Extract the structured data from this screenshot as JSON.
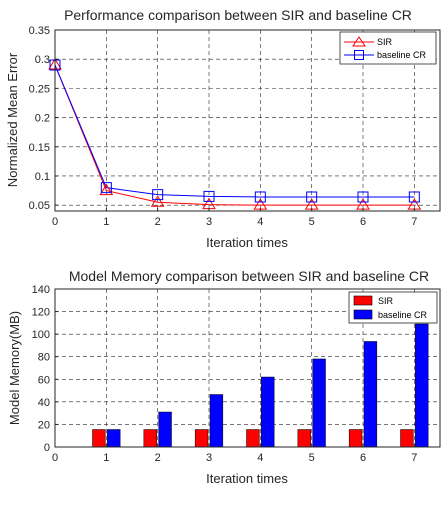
{
  "chart_data": [
    {
      "type": "line",
      "title": "Performance comparison between SIR and baseline CR",
      "xlabel": "Iteration times",
      "ylabel": "Normalized Mean Error",
      "xlim": [
        0,
        7.5
      ],
      "ylim": [
        0.04,
        0.35
      ],
      "xticks": [
        0,
        1,
        2,
        3,
        4,
        5,
        6,
        7
      ],
      "yticks": [
        0.05,
        0.1,
        0.15,
        0.2,
        0.25,
        0.3,
        0.35
      ],
      "ytick_labels": [
        "0.05",
        "0.1",
        "0.15",
        "0.2",
        "0.25",
        "0.3",
        "0.35"
      ],
      "grid": true,
      "legend_position": "top-right",
      "x": [
        0,
        1,
        2,
        3,
        4,
        5,
        6,
        7
      ],
      "series": [
        {
          "name": "SIR",
          "values": [
            0.29,
            0.075,
            0.055,
            0.051,
            0.05,
            0.05,
            0.05,
            0.05
          ],
          "color": "#ff0000",
          "marker": "triangle"
        },
        {
          "name": "baseline CR",
          "values": [
            0.29,
            0.08,
            0.068,
            0.065,
            0.064,
            0.064,
            0.064,
            0.064
          ],
          "color": "#0000ff",
          "marker": "square"
        }
      ]
    },
    {
      "type": "bar",
      "title": "Model Memory comparison between SIR and baseline CR",
      "xlabel": "Iteration times",
      "ylabel": "Model Memory(MB)",
      "xlim": [
        0,
        7.5
      ],
      "ylim": [
        0,
        140
      ],
      "xticks": [
        0,
        1,
        2,
        3,
        4,
        5,
        6,
        7
      ],
      "yticks": [
        0,
        20,
        40,
        60,
        80,
        100,
        120,
        140
      ],
      "grid": true,
      "legend_position": "top-right",
      "categories": [
        1,
        2,
        3,
        4,
        5,
        6,
        7
      ],
      "series": [
        {
          "name": "SIR",
          "values": [
            15.5,
            15.5,
            15.5,
            15.5,
            15.5,
            15.5,
            15.5
          ],
          "color": "#ff0000"
        },
        {
          "name": "baseline CR",
          "values": [
            15.5,
            31,
            46.5,
            62,
            78,
            93.5,
            109
          ],
          "color": "#0000ff"
        }
      ]
    }
  ]
}
